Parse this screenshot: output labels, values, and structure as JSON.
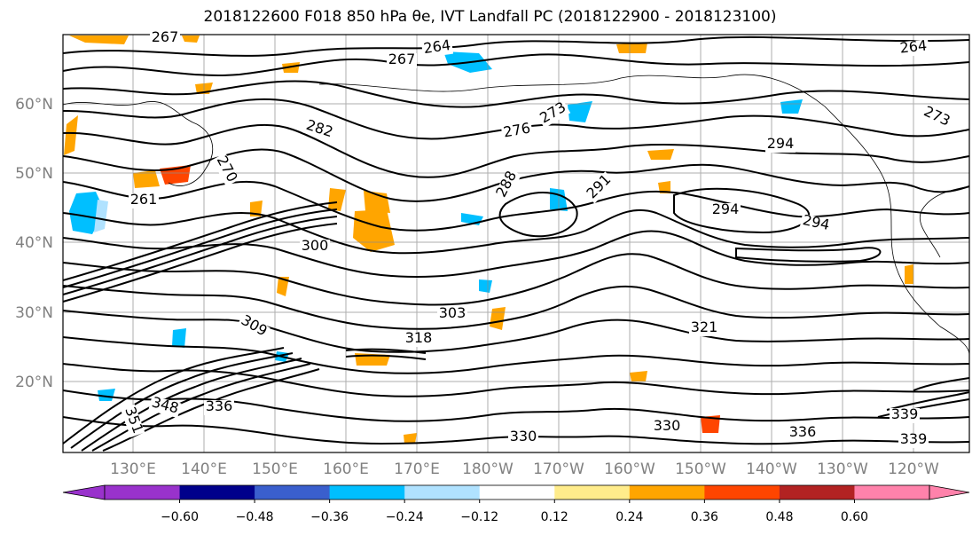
{
  "title": "2018122600 F018 850 hPa θe, IVT Landfall PC (2018122900 - 2018123100)",
  "lon_labels": [
    "130°E",
    "140°E",
    "150°E",
    "160°E",
    "170°E",
    "180°W",
    "170°W",
    "160°W",
    "150°W",
    "140°W",
    "130°W",
    "120°W"
  ],
  "lat_labels": [
    "60°N",
    "50°N",
    "40°N",
    "30°N",
    "20°N"
  ],
  "colorbar": {
    "colors": [
      "#9932cc",
      "#00008b",
      "#3a5fcd",
      "#00bfff",
      "#b0e2ff",
      "#ffffff",
      "#ffec8b",
      "#ffa500",
      "#ff4500",
      "#b22222",
      "#ff82ab"
    ],
    "ticks": [
      "−0.60",
      "−0.48",
      "−0.36",
      "−0.24",
      "−0.12",
      "0.12",
      "0.24",
      "0.36",
      "0.48",
      "0.60"
    ],
    "extend": "both"
  },
  "contour_labels": [
    {
      "text": "267"
    },
    {
      "text": "264"
    },
    {
      "text": "267"
    },
    {
      "text": "264"
    },
    {
      "text": "270"
    },
    {
      "text": "273"
    },
    {
      "text": "282"
    },
    {
      "text": "276"
    },
    {
      "text": "273"
    },
    {
      "text": "294"
    },
    {
      "text": "288"
    },
    {
      "text": "291"
    },
    {
      "text": "294"
    },
    {
      "text": "294"
    },
    {
      "text": "261"
    },
    {
      "text": "300"
    },
    {
      "text": "303"
    },
    {
      "text": "309"
    },
    {
      "text": "318"
    },
    {
      "text": "321"
    },
    {
      "text": "330"
    },
    {
      "text": "336"
    },
    {
      "text": "339"
    },
    {
      "text": "339"
    },
    {
      "text": "348"
    },
    {
      "text": "351"
    },
    {
      "text": "336"
    },
    {
      "text": "330"
    }
  ]
}
